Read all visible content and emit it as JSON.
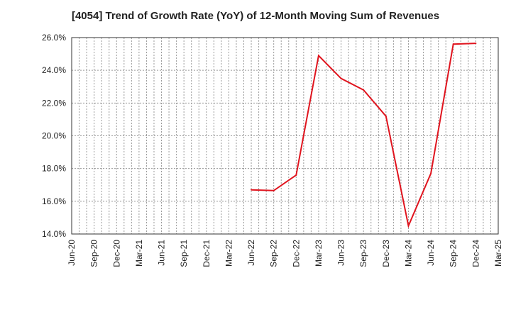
{
  "chart_data": {
    "type": "line",
    "title": "[4054]  Trend of Growth Rate (YoY) of 12-Month Moving Sum of Revenues",
    "xlabel": "",
    "ylabel": "",
    "x_ticks": [
      "Jun-20",
      "Sep-20",
      "Dec-20",
      "Mar-21",
      "Jun-21",
      "Sep-21",
      "Dec-21",
      "Mar-22",
      "Jun-22",
      "Sep-22",
      "Dec-22",
      "Mar-23",
      "Jun-23",
      "Sep-23",
      "Dec-23",
      "Mar-24",
      "Jun-24",
      "Sep-24",
      "Dec-24",
      "Mar-25"
    ],
    "y_ticks": [
      "14.0%",
      "16.0%",
      "18.0%",
      "20.0%",
      "22.0%",
      "24.0%",
      "26.0%"
    ],
    "ylim": [
      14.0,
      26.0
    ],
    "grid": true,
    "line_color": "#e0141e",
    "series": [
      {
        "x": [
          "Jun-22",
          "Sep-22",
          "Dec-22",
          "Mar-23",
          "Jun-23",
          "Sep-23",
          "Dec-23",
          "Mar-24",
          "Jun-24",
          "Sep-24",
          "Dec-24"
        ],
        "values": [
          16.7,
          16.65,
          17.6,
          24.9,
          23.5,
          22.8,
          21.2,
          14.5,
          17.7,
          25.6,
          25.65
        ]
      }
    ]
  }
}
